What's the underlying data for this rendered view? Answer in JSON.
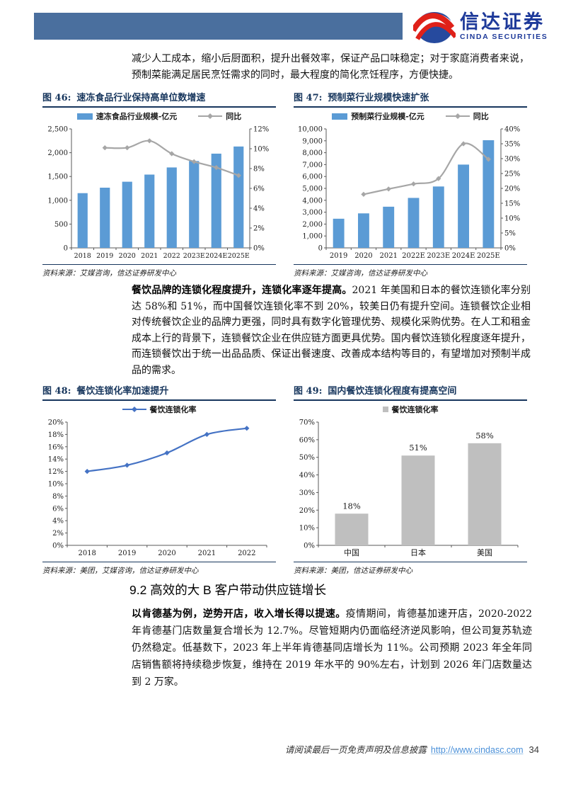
{
  "header": {
    "logo_cn": "信达证券",
    "logo_en": "CINDA SECURITIES"
  },
  "paragraphs": {
    "p1": "减少人工成本，缩小后厨面积，提升出餐效率，保证产品口味稳定；对于家庭消费者来说，预制菜能满足居民烹饪需求的同时，最大程度的简化烹饪程序，方便快捷。",
    "p2_bold": "餐饮品牌的连锁化程度提升，连锁化率逐年提高。",
    "p2_rest": "2021 年美国和日本的餐饮连锁化率分别达 58%和 51%，而中国餐饮连锁化率不到 20%，较美日仍有提升空间。连锁餐饮企业相对传统餐饮企业的品牌力更强，同时具有数字化管理优势、规模化采购优势。在人工和租金成本上行的背景下，连锁餐饮企业在供应链方面更具优势。国内餐饮连锁化程度逐年提升，而连锁餐饮出于统一出品品质、保证出餐速度、改善成本结构等目的，有望增加对预制半成品的需求。",
    "section_heading": "9.2 高效的大 B 客户带动供应链增长",
    "p3_bold": "以肯德基为例，逆势开店，收入增长得以提速。",
    "p3_rest": "疫情期间，肯德基加速开店，2020-2022 年肯德基门店数量复合增长为 12.7%。尽管短期内仍面临经济逆风影响，但公司复苏轨迹仍然稳定。低基数下，2023 年上半年肯德基同店增长为 11%。公司预期 2023 年全年同店销售额将持续稳步恢复，维持在 2019 年水平的 90%左右，计划到 2026 年门店数量达到 2 万家。"
  },
  "footer": {
    "disclaimer": "请阅读最后一页免责声明及信息披露",
    "url": "http://www.cindasc.com",
    "page": "34"
  },
  "colors": {
    "header_bar": "#4a6f9e",
    "logo_blue": "#1e3a9a",
    "logo_red": "#df2119",
    "title_navy": "#17365d",
    "bar_blue": "#5B9BD5",
    "line_gray": "#A6A6A6",
    "line_blue": "#4472C4",
    "bar_gray": "#BFBFBF",
    "link_blue": "#4a90d9"
  },
  "chart_data": [
    {
      "type": "bar",
      "fig_label": "图 46:",
      "title": "速冻食品行业保持高单位数增速",
      "categories": [
        "2018",
        "2019",
        "2020",
        "2021",
        "2022",
        "2023E",
        "2024E",
        "2025E"
      ],
      "series": [
        {
          "name": "速冻食品行业规模-亿元",
          "type": "bar",
          "axis": "left",
          "color": "#5B9BD5",
          "values": [
            1150,
            1265,
            1390,
            1540,
            1690,
            1825,
            1980,
            2130
          ]
        },
        {
          "name": "同比",
          "type": "line",
          "axis": "right",
          "color": "#A6A6A6",
          "values": [
            null,
            10.1,
            10.1,
            10.8,
            9.5,
            8.7,
            8.1,
            7.3
          ]
        }
      ],
      "left_axis": {
        "min": 0,
        "max": 2500,
        "step": 500,
        "format": "number"
      },
      "right_axis": {
        "min": 0,
        "max": 12,
        "step": 2,
        "format": "percent"
      },
      "grid": false,
      "legend_position": "top",
      "source": "资料来源：艾媒咨询，信达证券研发中心"
    },
    {
      "type": "bar",
      "fig_label": "图 47:",
      "title": "预制菜行业规模快速扩张",
      "categories": [
        "2019",
        "2020",
        "2021",
        "2022E",
        "2023E",
        "2024E",
        "2025E"
      ],
      "series": [
        {
          "name": "预制菜行业规模-亿元",
          "type": "bar",
          "axis": "left",
          "color": "#5B9BD5",
          "values": [
            2450,
            2900,
            3460,
            4200,
            5160,
            7000,
            9050
          ]
        },
        {
          "name": "同比",
          "type": "line",
          "axis": "right",
          "color": "#A6A6A6",
          "values": [
            null,
            18,
            19.8,
            21.5,
            23.3,
            35,
            29.8
          ]
        }
      ],
      "left_axis": {
        "min": 0,
        "max": 10000,
        "step": 1000,
        "format": "number"
      },
      "right_axis": {
        "min": 0,
        "max": 40,
        "step": 5,
        "format": "percent"
      },
      "grid": false,
      "legend_position": "top",
      "source": "资料来源：艾媒咨询，信达证券研发中心"
    },
    {
      "type": "line",
      "fig_label": "图 48:",
      "title": "餐饮连锁化率加速提升",
      "categories": [
        "2018",
        "2019",
        "2020",
        "2021",
        "2022"
      ],
      "series": [
        {
          "name": "餐饮连锁化率",
          "type": "line",
          "axis": "left",
          "color": "#4472C4",
          "smooth": true,
          "values": [
            12,
            13,
            15,
            18,
            19
          ]
        }
      ],
      "left_axis": {
        "min": 0,
        "max": 20,
        "step": 2,
        "format": "percent"
      },
      "grid": false,
      "legend_position": "top",
      "source": "资料来源：美团，艾媒咨询，信达证券研发中心"
    },
    {
      "type": "bar",
      "fig_label": "图 49:",
      "title": "国内餐饮连锁化程度有提高空间",
      "categories": [
        "中国",
        "日本",
        "美国"
      ],
      "series": [
        {
          "name": "餐饮连锁化率",
          "type": "bar",
          "axis": "left",
          "color": "#BFBFBF",
          "legend_marker": "square",
          "data_labels": [
            "18%",
            "51%",
            "58%"
          ],
          "values": [
            18,
            51,
            58
          ]
        }
      ],
      "left_axis": {
        "min": 0,
        "max": 70,
        "step": 10,
        "format": "percent"
      },
      "grid": false,
      "legend_position": "top",
      "source": "资料来源：美团，信达证券研发中心"
    }
  ]
}
